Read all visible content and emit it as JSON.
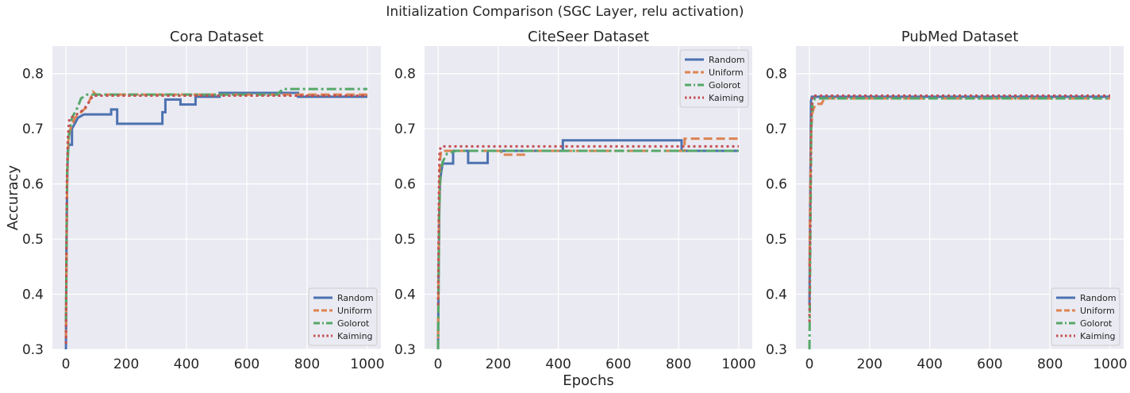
{
  "figure": {
    "title": "Initialization Comparison  (SGC Layer, relu activation)"
  },
  "chart_data": [
    {
      "type": "line",
      "title": "Cora Dataset",
      "xlabel": "",
      "ylabel": "Accuracy",
      "xlim": [
        -45,
        1045
      ],
      "ylim": [
        0.3,
        0.85
      ],
      "xticks": [
        0,
        200,
        400,
        600,
        800,
        1000
      ],
      "yticks": [
        0.3,
        0.4,
        0.5,
        0.6,
        0.7,
        0.8
      ],
      "grid": true,
      "legend": "lower-right",
      "series": [
        {
          "name": "Random",
          "color": "#4C72B0",
          "dash": "solid",
          "points": [
            [
              0,
              0.3
            ],
            [
              2,
              0.5
            ],
            [
              4,
              0.6
            ],
            [
              6,
              0.66
            ],
            [
              10,
              0.671
            ],
            [
              20,
              0.671
            ],
            [
              20,
              0.7
            ],
            [
              30,
              0.71
            ],
            [
              40,
              0.72
            ],
            [
              60,
              0.726
            ],
            [
              150,
              0.726
            ],
            [
              150,
              0.735
            ],
            [
              170,
              0.735
            ],
            [
              170,
              0.709
            ],
            [
              320,
              0.709
            ],
            [
              320,
              0.73
            ],
            [
              330,
              0.73
            ],
            [
              330,
              0.753
            ],
            [
              380,
              0.753
            ],
            [
              380,
              0.744
            ],
            [
              430,
              0.744
            ],
            [
              430,
              0.758
            ],
            [
              510,
              0.758
            ],
            [
              510,
              0.765
            ],
            [
              770,
              0.765
            ],
            [
              770,
              0.758
            ],
            [
              1000,
              0.758
            ]
          ]
        },
        {
          "name": "Uniform",
          "color": "#DD8452",
          "dash": "dashed",
          "points": [
            [
              0,
              0.32
            ],
            [
              4,
              0.6
            ],
            [
              8,
              0.68
            ],
            [
              15,
              0.7
            ],
            [
              30,
              0.72
            ],
            [
              50,
              0.73
            ],
            [
              70,
              0.74
            ],
            [
              90,
              0.767
            ],
            [
              100,
              0.762
            ],
            [
              1000,
              0.762
            ]
          ]
        },
        {
          "name": "Golorot",
          "color": "#55A868",
          "dash": "dashdot",
          "points": [
            [
              0,
              0.35
            ],
            [
              4,
              0.62
            ],
            [
              10,
              0.69
            ],
            [
              20,
              0.72
            ],
            [
              40,
              0.74
            ],
            [
              50,
              0.755
            ],
            [
              70,
              0.762
            ],
            [
              700,
              0.762
            ],
            [
              720,
              0.772
            ],
            [
              1000,
              0.772
            ]
          ]
        },
        {
          "name": "Kaiming",
          "color": "#C44E52",
          "dash": "dotted",
          "points": [
            [
              0,
              0.31
            ],
            [
              3,
              0.6
            ],
            [
              6,
              0.68
            ],
            [
              10,
              0.71
            ],
            [
              12,
              0.72
            ],
            [
              25,
              0.722
            ],
            [
              60,
              0.735
            ],
            [
              90,
              0.76
            ],
            [
              1000,
              0.76
            ]
          ]
        }
      ]
    },
    {
      "type": "line",
      "title": "CiteSeer Dataset",
      "xlabel": "Epochs",
      "ylabel": "",
      "xlim": [
        -45,
        1045
      ],
      "ylim": [
        0.3,
        0.85
      ],
      "xticks": [
        0,
        200,
        400,
        600,
        800,
        1000
      ],
      "yticks": [
        0.3,
        0.4,
        0.5,
        0.6,
        0.7,
        0.8
      ],
      "grid": true,
      "legend": "upper-right",
      "series": [
        {
          "name": "Random",
          "color": "#4C72B0",
          "dash": "solid",
          "points": [
            [
              0,
              0.3
            ],
            [
              2,
              0.45
            ],
            [
              4,
              0.55
            ],
            [
              6,
              0.6
            ],
            [
              10,
              0.62
            ],
            [
              15,
              0.637
            ],
            [
              50,
              0.637
            ],
            [
              50,
              0.66
            ],
            [
              100,
              0.66
            ],
            [
              100,
              0.638
            ],
            [
              165,
              0.638
            ],
            [
              165,
              0.66
            ],
            [
              415,
              0.66
            ],
            [
              415,
              0.679
            ],
            [
              810,
              0.679
            ],
            [
              810,
              0.66
            ],
            [
              1000,
              0.66
            ]
          ]
        },
        {
          "name": "Uniform",
          "color": "#DD8452",
          "dash": "dashed",
          "points": [
            [
              0,
              0.32
            ],
            [
              3,
              0.55
            ],
            [
              6,
              0.64
            ],
            [
              10,
              0.66
            ],
            [
              210,
              0.66
            ],
            [
              210,
              0.653
            ],
            [
              290,
              0.653
            ],
            [
              290,
              0.66
            ],
            [
              820,
              0.66
            ],
            [
              820,
              0.682
            ],
            [
              1000,
              0.682
            ]
          ]
        },
        {
          "name": "Golorot",
          "color": "#55A868",
          "dash": "dashdot",
          "points": [
            [
              0,
              0.3
            ],
            [
              4,
              0.55
            ],
            [
              8,
              0.62
            ],
            [
              15,
              0.64
            ],
            [
              30,
              0.655
            ],
            [
              60,
              0.66
            ],
            [
              1000,
              0.66
            ]
          ]
        },
        {
          "name": "Kaiming",
          "color": "#C44E52",
          "dash": "dotted",
          "points": [
            [
              0,
              0.38
            ],
            [
              3,
              0.6
            ],
            [
              5,
              0.66
            ],
            [
              10,
              0.668
            ],
            [
              1000,
              0.668
            ]
          ]
        }
      ]
    },
    {
      "type": "line",
      "title": "PubMed Dataset",
      "xlabel": "",
      "ylabel": "",
      "xlim": [
        -45,
        1045
      ],
      "ylim": [
        0.3,
        0.85
      ],
      "xticks": [
        0,
        200,
        400,
        600,
        800,
        1000
      ],
      "yticks": [
        0.3,
        0.4,
        0.5,
        0.6,
        0.7,
        0.8
      ],
      "grid": true,
      "legend": "lower-right",
      "series": [
        {
          "name": "Random",
          "color": "#4C72B0",
          "dash": "solid",
          "points": [
            [
              0,
              0.38
            ],
            [
              3,
              0.6
            ],
            [
              5,
              0.75
            ],
            [
              8,
              0.758
            ],
            [
              1000,
              0.758
            ]
          ]
        },
        {
          "name": "Uniform",
          "color": "#DD8452",
          "dash": "dashed",
          "points": [
            [
              0,
              0.45
            ],
            [
              3,
              0.6
            ],
            [
              6,
              0.7
            ],
            [
              10,
              0.73
            ],
            [
              20,
              0.745
            ],
            [
              40,
              0.745
            ],
            [
              50,
              0.755
            ],
            [
              1000,
              0.755
            ]
          ]
        },
        {
          "name": "Golorot",
          "color": "#55A868",
          "dash": "dashdot",
          "points": [
            [
              0,
              0.3
            ],
            [
              3,
              0.5
            ],
            [
              6,
              0.7
            ],
            [
              10,
              0.75
            ],
            [
              20,
              0.755
            ],
            [
              1000,
              0.755
            ]
          ]
        },
        {
          "name": "Kaiming",
          "color": "#C44E52",
          "dash": "dotted",
          "points": [
            [
              0,
              0.35
            ],
            [
              3,
              0.55
            ],
            [
              6,
              0.72
            ],
            [
              10,
              0.76
            ],
            [
              1000,
              0.76
            ]
          ]
        }
      ]
    }
  ]
}
